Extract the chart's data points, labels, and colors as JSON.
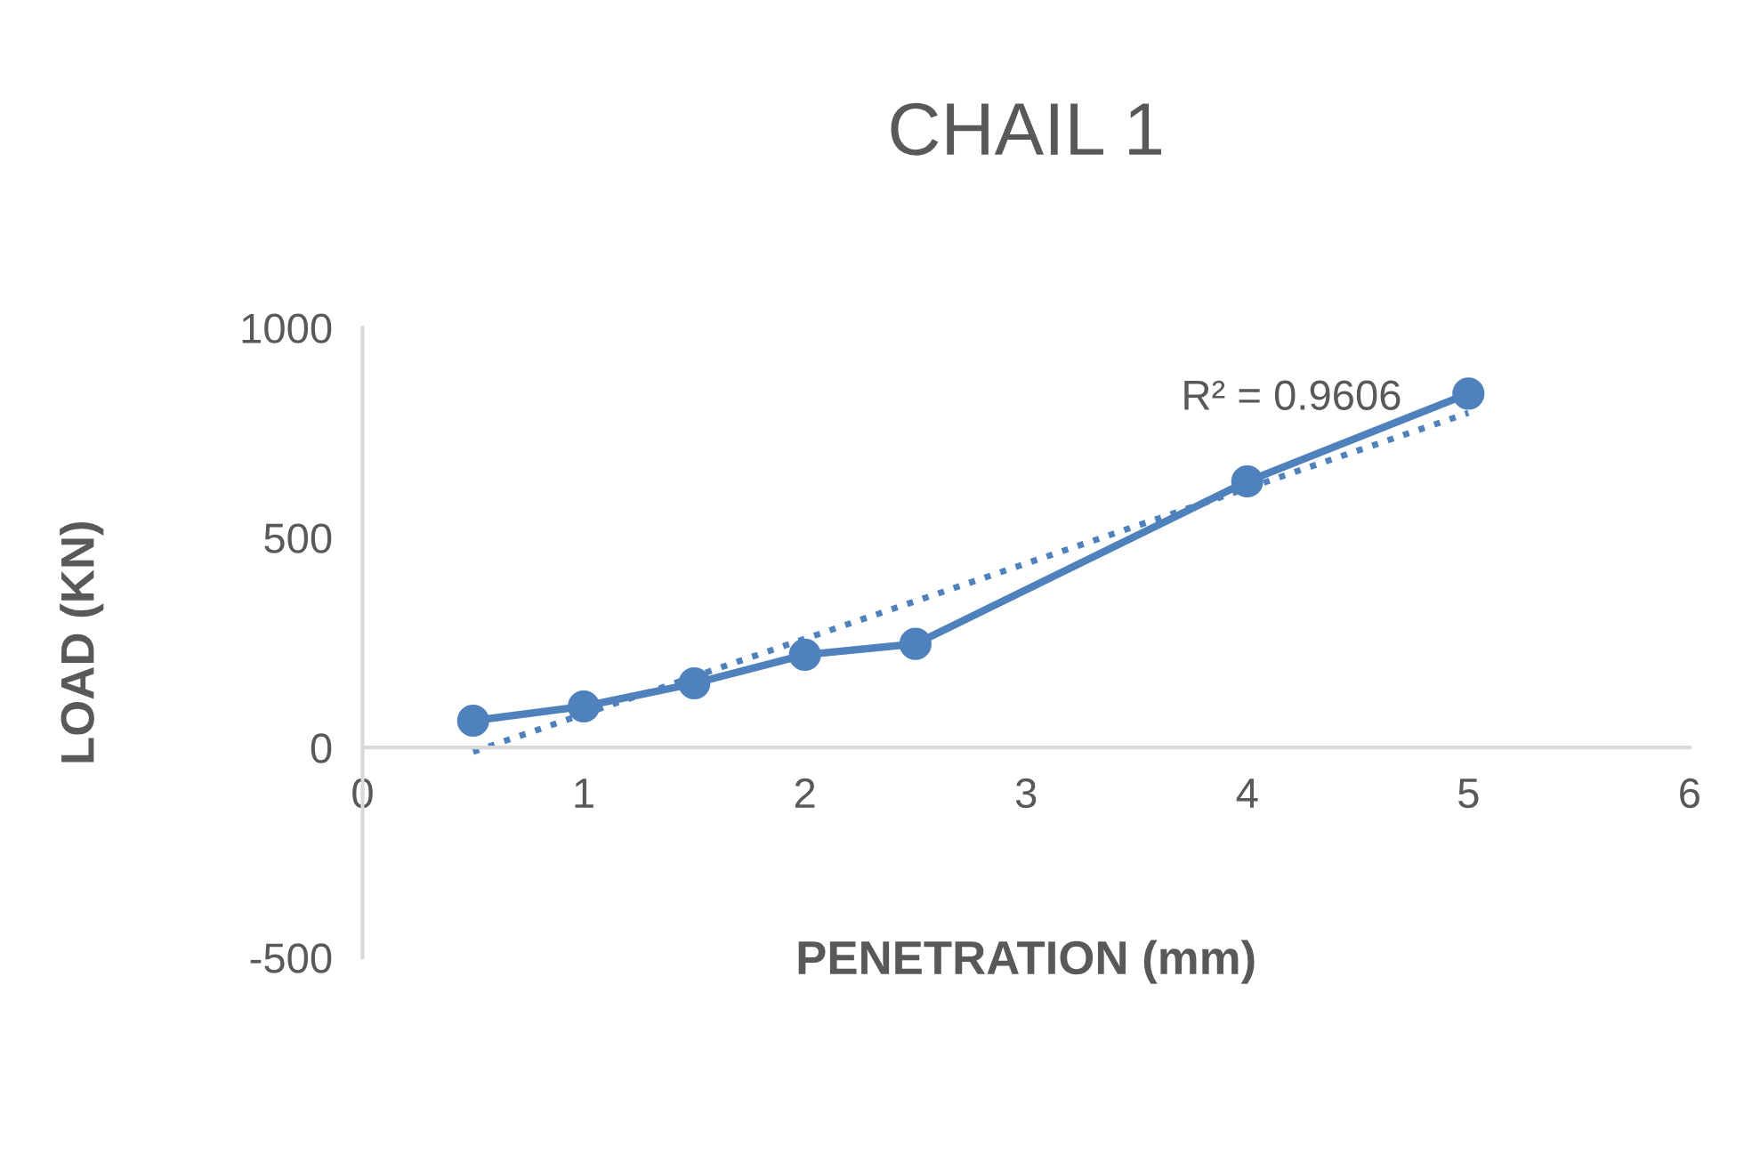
{
  "chart_data": {
    "type": "line",
    "title": "CHAIL 1",
    "xlabel": "PENETRATION (mm)",
    "ylabel": "LOAD (KN)",
    "xlim": [
      0,
      6
    ],
    "xticks": [
      0,
      1,
      2,
      3,
      4,
      5,
      6
    ],
    "ylim": [
      -500,
      1000
    ],
    "yticks": [
      -500,
      0,
      500,
      1000
    ],
    "grid": false,
    "legend": false,
    "series": [
      {
        "color": "#4f81bd",
        "marker": "circle",
        "line_style": "solid",
        "x": [
          0.5,
          1,
          1.5,
          2,
          2.5,
          4,
          5
        ],
        "values": [
          64,
          98,
          153,
          221,
          247,
          634,
          843
        ]
      },
      {
        "color": "#4f81bd",
        "marker": "none",
        "line_style": "dotted",
        "x": [
          0.5,
          5
        ],
        "values": [
          -10,
          797
        ]
      }
    ],
    "annotations": [
      "R² = 0.9606"
    ]
  }
}
